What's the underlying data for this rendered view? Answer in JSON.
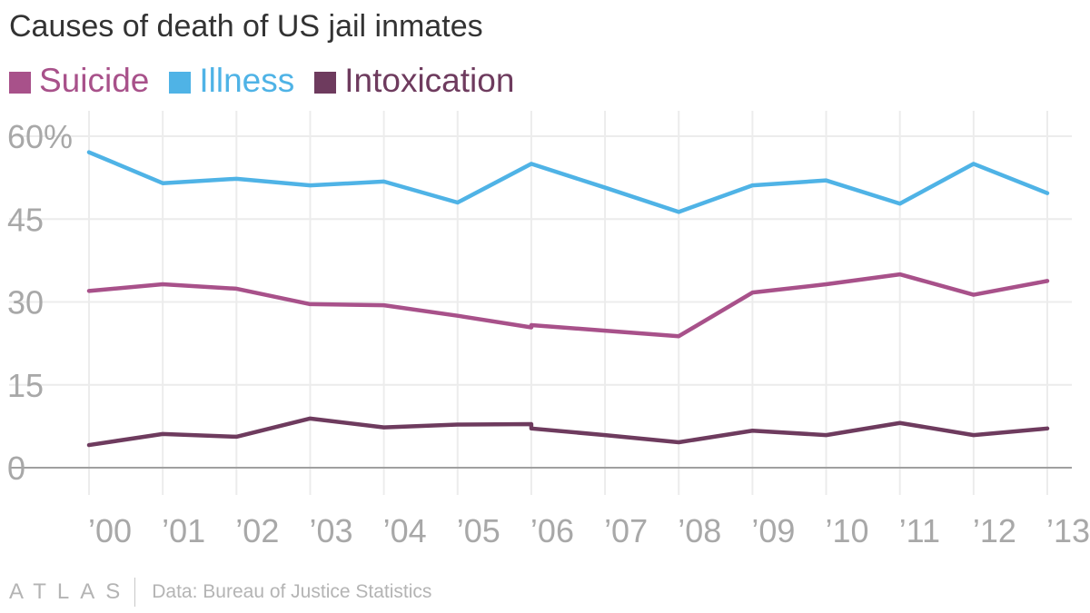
{
  "chart_data": {
    "type": "line",
    "title": "Causes of death of US jail inmates",
    "xlabel": "",
    "ylabel": "",
    "categories": [
      "’00",
      "’01",
      "’02",
      "’03",
      "’04",
      "’05",
      "’06",
      "’07",
      "’08",
      "’09",
      "’10",
      "’11",
      "’12",
      "’13"
    ],
    "ylim": [
      0,
      60
    ],
    "yticks": [
      0,
      15,
      30,
      45,
      60
    ],
    "ytick_labels": [
      "0",
      "15",
      "30",
      "45",
      "60%"
    ],
    "grid": true,
    "legend_position": "top-left",
    "series": [
      {
        "name": "Suicide",
        "color": "#a8518a",
        "values": [
          32.0,
          33.2,
          32.4,
          29.6,
          29.4,
          27.5,
          25.4,
          24.8,
          23.8,
          31.7,
          33.2,
          35.0,
          31.3,
          33.8
        ],
        "jump_at_06": [
          25.4,
          25.8
        ]
      },
      {
        "name": "Illness",
        "color": "#4fb3e6",
        "values": [
          57.1,
          51.5,
          52.3,
          51.1,
          51.8,
          48.0,
          55.0,
          50.7,
          46.3,
          51.1,
          52.0,
          47.8,
          55.0,
          49.7
        ]
      },
      {
        "name": "Intoxication",
        "color": "#6e3b5e",
        "values": [
          4.1,
          6.1,
          5.6,
          8.9,
          7.3,
          7.8,
          7.1,
          5.9,
          4.6,
          6.7,
          5.9,
          8.1,
          5.9,
          7.1
        ],
        "jump_at_06": [
          7.9,
          7.1
        ]
      }
    ]
  },
  "footer": {
    "logo": "ATLAS",
    "source": "Data: Bureau of Justice Statistics"
  }
}
